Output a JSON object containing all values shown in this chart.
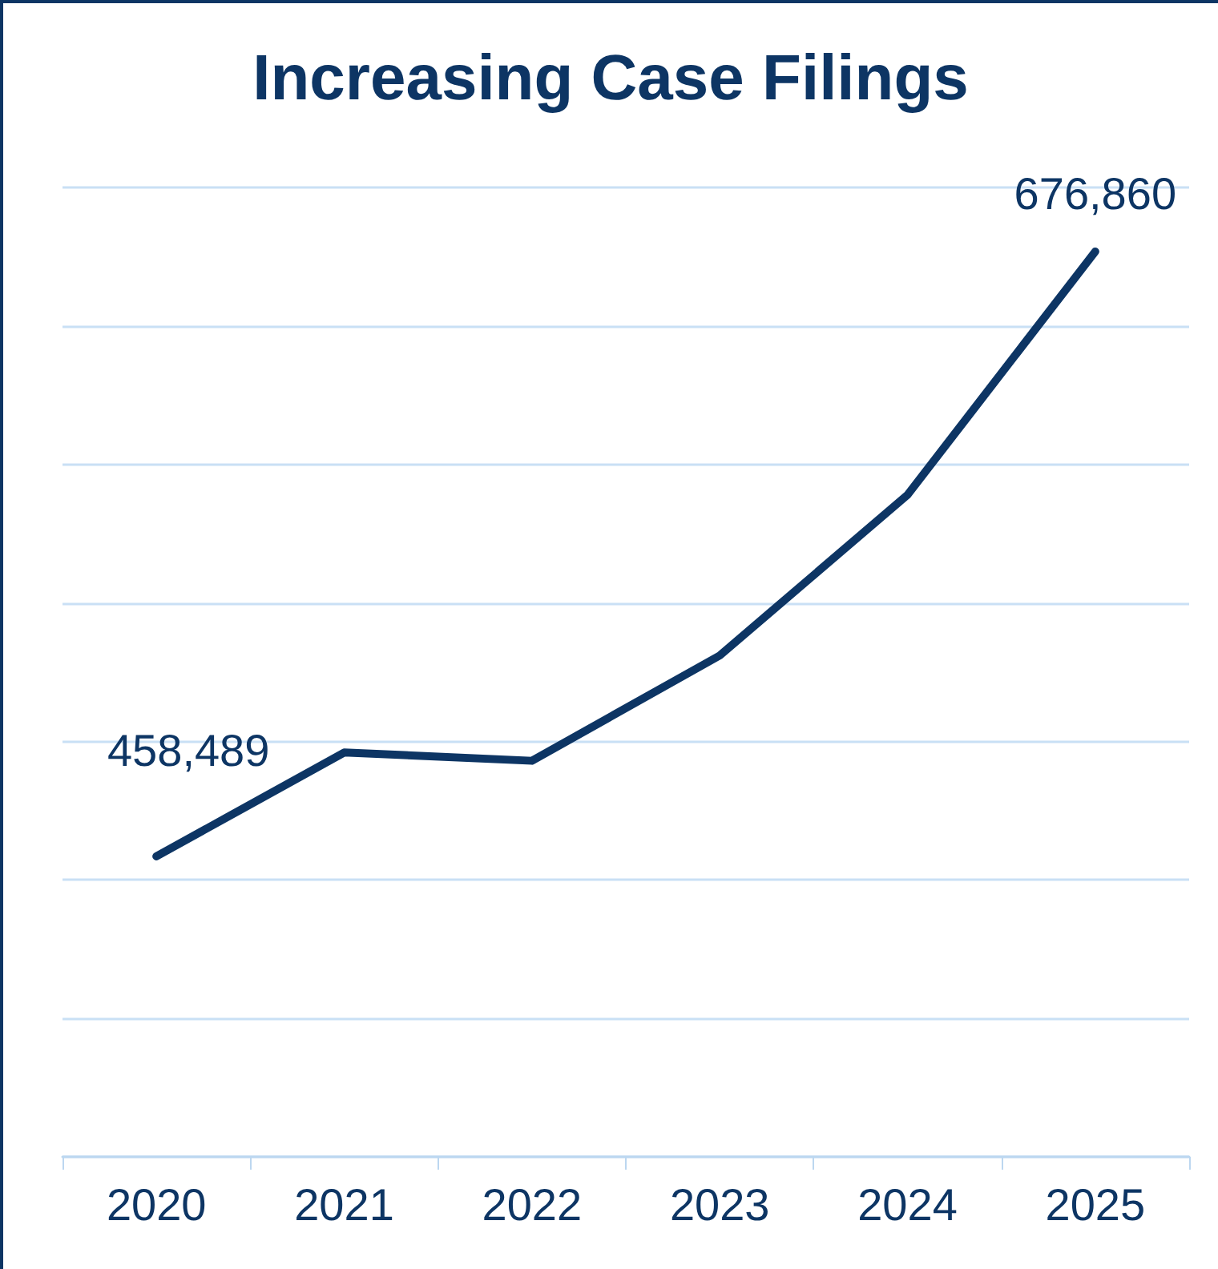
{
  "chart_data": {
    "type": "line",
    "title": "Increasing Case Filings",
    "categories": [
      "2020",
      "2021",
      "2022",
      "2023",
      "2024",
      "2025"
    ],
    "series": [
      {
        "color": "#0d3564",
        "values": [
          458489,
          496000,
          493000,
          531000,
          589000,
          676860
        ],
        "value_labels": [
          "458,489",
          null,
          null,
          null,
          null,
          "676,860"
        ]
      }
    ],
    "ylim": [
      350000,
      700000
    ],
    "yticks": [
      {
        "value": 350000,
        "label": null
      },
      {
        "value": 400000,
        "label": null
      },
      {
        "value": 450000,
        "label": null
      },
      {
        "value": 500000,
        "label": null
      },
      {
        "value": 550000,
        "label": null
      },
      {
        "value": 600000,
        "label": null
      },
      {
        "value": 650000,
        "label": null
      },
      {
        "value": 700000,
        "label": null
      }
    ],
    "tick_labels": "x",
    "grid": "y",
    "marker": "none",
    "line_style": "solid"
  }
}
